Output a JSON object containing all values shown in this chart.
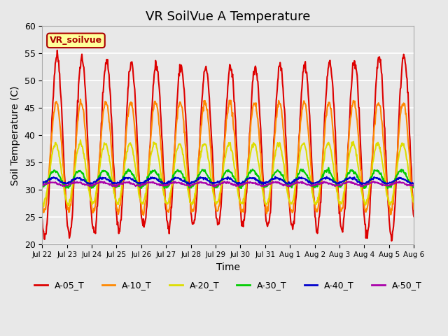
{
  "title": "VR SoilVue A Temperature",
  "xlabel": "Time",
  "ylabel": "Soil Temperature (C)",
  "ylim": [
    20,
    60
  ],
  "background_color": "#e8e8e8",
  "plot_bg_color": "#e8e8e8",
  "grid_color": "#ffffff",
  "series": [
    {
      "label": "A-05_T",
      "color": "#dd0000"
    },
    {
      "label": "A-10_T",
      "color": "#ff8800"
    },
    {
      "label": "A-20_T",
      "color": "#dddd00"
    },
    {
      "label": "A-30_T",
      "color": "#00cc00"
    },
    {
      "label": "A-40_T",
      "color": "#0000cc"
    },
    {
      "label": "A-50_T",
      "color": "#aa00aa"
    }
  ],
  "xtick_labels": [
    "Jul 22",
    "Jul 23",
    "Jul 24",
    "Jul 25",
    "Jul 26",
    "Jul 27",
    "Jul 28",
    "Jul 29",
    "Jul 30",
    "Jul 31",
    "Aug 1",
    "Aug 2",
    "Aug 3",
    "Aug 4",
    "Aug 5",
    "Aug 6"
  ],
  "watermark_text": "VR_soilvue",
  "watermark_bg": "#ffff99",
  "watermark_border": "#aa0000",
  "title_fontsize": 13,
  "axis_fontsize": 10,
  "legend_fontsize": 9
}
